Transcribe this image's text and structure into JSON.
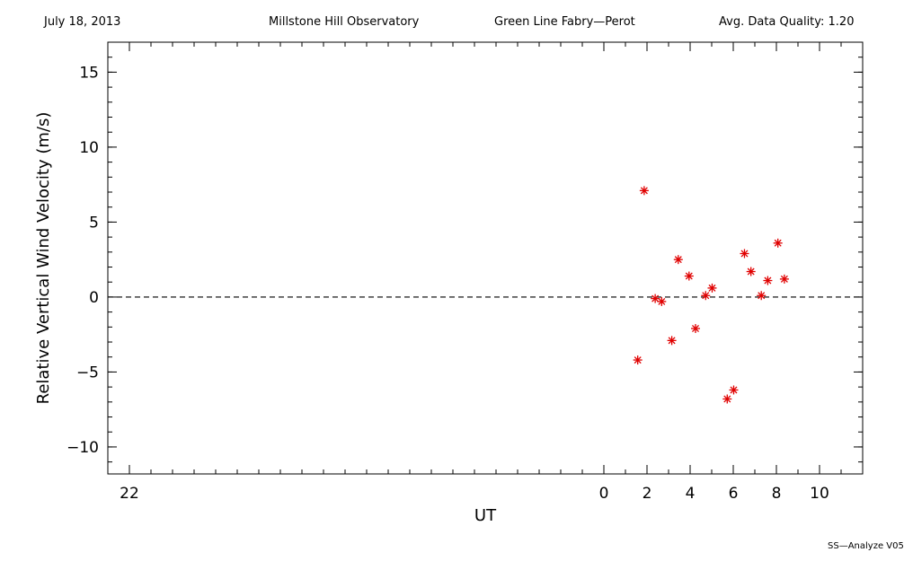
{
  "header": {
    "date": "July 18, 2013",
    "observatory": "Millstone Hill Observatory",
    "instrument": "Green Line Fabry—Perot",
    "quality": "Avg. Data Quality: 1.20"
  },
  "footer": "SS—Analyze V05",
  "chart_data": {
    "type": "scatter",
    "xlabel": "UT",
    "ylabel": "Relative Vertical Wind Velocity (m/s)",
    "xlim": [
      -23,
      12
    ],
    "ylim": [
      -11.8,
      17
    ],
    "x_ticks": [
      -22,
      0,
      2,
      4,
      6,
      8,
      10
    ],
    "x_tick_labels": [
      "22",
      "0",
      "2",
      "4",
      "6",
      "8",
      "10"
    ],
    "y_ticks": [
      -10,
      -5,
      0,
      5,
      10,
      15
    ],
    "y_tick_labels": [
      "−10",
      "−5",
      "0",
      "5",
      "10",
      "15"
    ],
    "reference_line": 0,
    "marker_color": "#e00000",
    "series": [
      {
        "x": [
          1.57,
          1.87,
          2.38,
          2.68,
          3.15,
          3.45,
          3.95,
          4.25,
          4.72,
          5.02,
          5.72,
          6.02,
          6.52,
          6.82,
          7.3,
          7.6,
          8.07,
          8.37
        ],
        "y": [
          -4.2,
          7.1,
          -0.1,
          -0.3,
          -2.9,
          2.5,
          1.4,
          -2.1,
          0.1,
          0.6,
          -6.8,
          -6.2,
          2.9,
          1.7,
          0.1,
          1.1,
          3.6,
          1.2
        ]
      }
    ]
  }
}
